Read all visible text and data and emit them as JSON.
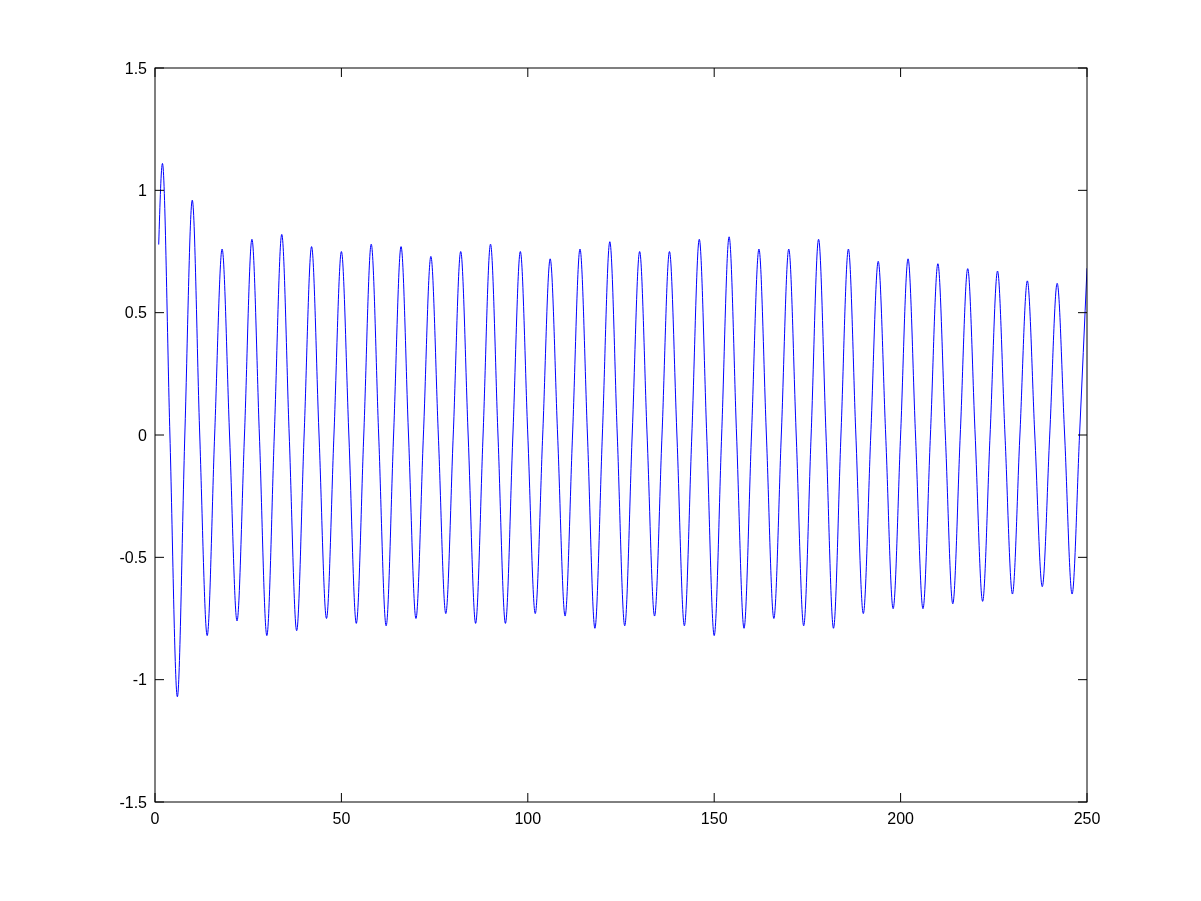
{
  "chart_data": {
    "type": "line",
    "x": [
      1,
      2,
      4,
      6,
      8,
      10,
      12,
      14,
      16,
      18,
      20,
      22,
      24,
      26,
      28,
      30,
      32,
      34,
      36,
      38,
      40,
      42,
      44,
      46,
      48,
      50,
      52,
      54,
      56,
      58,
      60,
      62,
      64,
      66,
      68,
      70,
      72,
      74,
      76,
      78,
      80,
      82,
      84,
      86,
      88,
      90,
      92,
      94,
      96,
      98,
      100,
      102,
      104,
      106,
      108,
      110,
      112,
      114,
      116,
      118,
      120,
      122,
      124,
      126,
      128,
      130,
      132,
      134,
      136,
      138,
      140,
      142,
      144,
      146,
      148,
      150,
      152,
      154,
      156,
      158,
      160,
      162,
      164,
      166,
      168,
      170,
      172,
      174,
      176,
      178,
      180,
      182,
      184,
      186,
      188,
      190,
      192,
      194,
      196,
      198,
      200,
      202,
      204,
      206,
      208,
      210,
      212,
      214,
      216,
      218,
      220,
      222,
      224,
      226,
      228,
      230,
      232,
      234,
      236,
      238,
      240,
      242,
      244,
      246,
      248,
      250
    ],
    "series": [
      {
        "color": "#0000ff",
        "values": [
          0.78,
          1.11,
          0,
          -1.07,
          0,
          0.96,
          0,
          -0.82,
          0,
          0.76,
          0,
          -0.76,
          0,
          0.8,
          0,
          -0.82,
          0,
          0.82,
          0,
          -0.8,
          0,
          0.77,
          0,
          -0.75,
          0,
          0.75,
          0,
          -0.77,
          0,
          0.78,
          0,
          -0.78,
          0,
          0.77,
          0,
          -0.75,
          0,
          0.73,
          0,
          -0.73,
          0,
          0.75,
          0,
          -0.77,
          0,
          0.78,
          0,
          -0.77,
          0,
          0.75,
          0,
          -0.73,
          0,
          0.72,
          0,
          -0.74,
          0,
          0.76,
          0,
          -0.79,
          0,
          0.79,
          0,
          -0.78,
          0,
          0.75,
          0,
          -0.74,
          0,
          0.75,
          0,
          -0.78,
          0,
          0.8,
          0,
          -0.82,
          0,
          0.81,
          0,
          -0.79,
          0,
          0.76,
          0,
          -0.75,
          0,
          0.76,
          0,
          -0.78,
          0,
          0.8,
          0,
          -0.79,
          0,
          0.76,
          0,
          -0.73,
          0,
          0.71,
          0,
          -0.71,
          0,
          0.72,
          0,
          -0.71,
          0,
          0.7,
          0,
          -0.69,
          0,
          0.68,
          0,
          -0.68,
          0,
          0.67,
          0,
          -0.65,
          0,
          0.63,
          0,
          -0.62,
          0,
          0.62,
          0,
          -0.65,
          0,
          0.68
        ]
      }
    ],
    "xlim": [
      0,
      250
    ],
    "ylim": [
      -1.5,
      1.5
    ],
    "xticks": [
      0,
      50,
      100,
      150,
      200,
      250
    ],
    "yticks": [
      -1.5,
      -1,
      -0.5,
      0,
      0.5,
      1,
      1.5
    ],
    "line_style": "solid"
  }
}
